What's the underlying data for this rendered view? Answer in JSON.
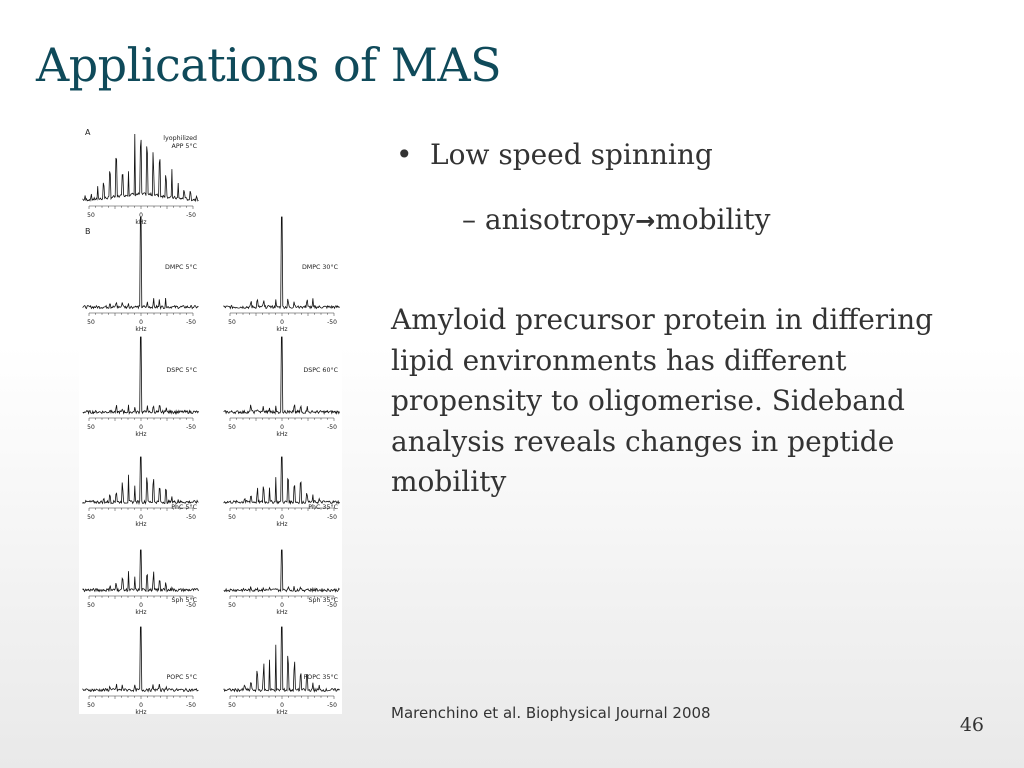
{
  "slide": {
    "title": "Applications of MAS",
    "bullet": "Low speed spinning",
    "bullet_marker": "•",
    "sub_bullet": {
      "dash": "–",
      "left": "anisotropy",
      "arrow": "→",
      "right": "mobility"
    },
    "paragraph": "Amyloid precursor protein in differing lipid environments has different propensity to oligomerise. Sideband analysis reveals changes in peptide mobility",
    "citation": "Marenchino et al. Biophysical Journal 2008",
    "page_number": "46"
  },
  "figure": {
    "panel_a_label": "A",
    "panel_b_label": "B",
    "axis_unit": "kHz",
    "tick_left": "50",
    "tick_mid": "0",
    "tick_right": "-50",
    "spectra": [
      {
        "label": "lyophilized",
        "label2": "APP 5°C",
        "col": 0
      },
      {
        "label": "DMPC 5°C",
        "col": 0
      },
      {
        "label": "DMPC 30°C",
        "col": 1
      },
      {
        "label": "DSPC 5°C",
        "col": 0
      },
      {
        "label": "DSPC 60°C",
        "col": 1
      },
      {
        "label": "PhC 5°C",
        "col": 0
      },
      {
        "label": "PhC 35°C",
        "col": 1
      },
      {
        "label": "Sph 5°C",
        "col": 0
      },
      {
        "label": "Sph 35°C",
        "col": 1
      },
      {
        "label": "POPC 5°C",
        "col": 0
      },
      {
        "label": "POPC 35°C",
        "col": 1
      }
    ]
  }
}
